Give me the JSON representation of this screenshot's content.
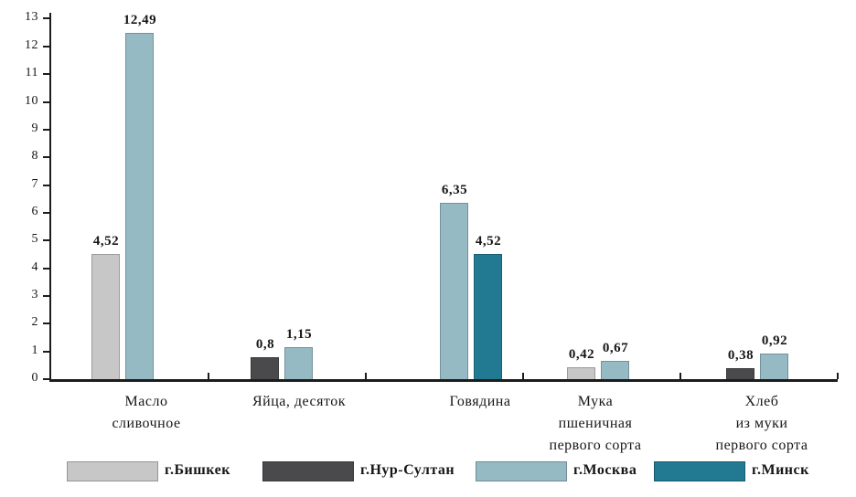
{
  "chart_data": {
    "type": "bar",
    "title": "",
    "xlabel": "",
    "ylabel": "",
    "ylim": [
      0,
      13
    ],
    "yticks": [
      "0",
      "1",
      "2",
      "3",
      "4",
      "5",
      "6",
      "7",
      "8",
      "9",
      "10",
      "11",
      "12",
      "13"
    ],
    "grid": false,
    "legend_position": "bottom",
    "axis_color": "#1c1c1c",
    "decimal_separator": ",",
    "categories": [
      "Масло сливочное",
      "Яйца, десяток",
      "Говядина",
      "Мука пшеничная первого сорта",
      "Хлеб из муки первого сорта"
    ],
    "category_label_lines": [
      [
        "Масло",
        "сливочное"
      ],
      [
        "Яйца, десяток"
      ],
      [
        "Говядина"
      ],
      [
        "Мука",
        "пшеничная",
        "первого сорта"
      ],
      [
        "Хлеб",
        "из муки",
        "первого сорта"
      ]
    ],
    "series": [
      {
        "name": "г.Бишкек",
        "color": "#c7c7c7",
        "values": [
          4.52,
          null,
          null,
          0.42,
          null
        ],
        "labels": [
          "4,52",
          null,
          null,
          "0,42",
          null
        ]
      },
      {
        "name": "г.Нур-Султан",
        "color": "#4a4a4c",
        "values": [
          null,
          0.8,
          null,
          null,
          0.38
        ],
        "labels": [
          null,
          "0,8",
          null,
          null,
          "0,38"
        ]
      },
      {
        "name": "г.Москва",
        "color": "#95bac4",
        "values": [
          12.49,
          1.15,
          6.35,
          0.67,
          0.92
        ],
        "labels": [
          "12,49",
          "1,15",
          "6,35",
          "0,67",
          "0,92"
        ]
      },
      {
        "name": "г.Минск",
        "color": "#217a92",
        "values": [
          null,
          null,
          4.52,
          null,
          null
        ],
        "labels": [
          null,
          null,
          "4,52",
          null,
          null
        ]
      }
    ]
  }
}
